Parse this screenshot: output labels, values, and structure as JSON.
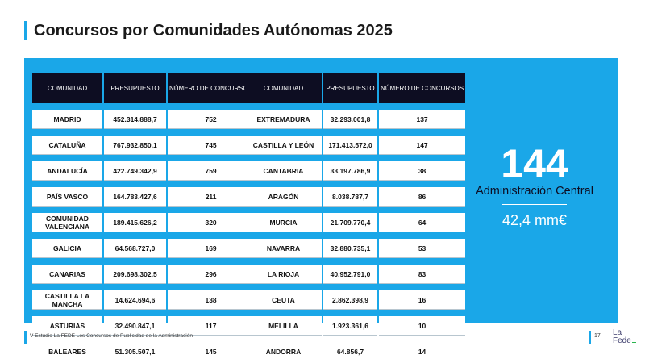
{
  "header": {
    "title": "Concursos por Comunidades Autónomas 2025"
  },
  "columns": [
    "COMUNIDAD",
    "PRESUPUESTO",
    "NÚMERO DE CONCURSOS"
  ],
  "left_table": [
    {
      "comunidad": "MADRID",
      "presupuesto": "452.314.888,7",
      "concursos": "752"
    },
    {
      "comunidad": "CATALUÑA",
      "presupuesto": "767.932.850,1",
      "concursos": "745"
    },
    {
      "comunidad": "ANDALUCÍA",
      "presupuesto": "422.749.342,9",
      "concursos": "759"
    },
    {
      "comunidad": "PAÍS VASCO",
      "presupuesto": "164.783.427,6",
      "concursos": "211"
    },
    {
      "comunidad": "COMUNIDAD VALENCIANA",
      "presupuesto": "189.415.626,2",
      "concursos": "320"
    },
    {
      "comunidad": "GALICIA",
      "presupuesto": "64.568.727,0",
      "concursos": "169"
    },
    {
      "comunidad": "CANARIAS",
      "presupuesto": "209.698.302,5",
      "concursos": "296"
    },
    {
      "comunidad": "CASTILLA LA MANCHA",
      "presupuesto": "14.624.694,6",
      "concursos": "138"
    },
    {
      "comunidad": "ASTURIAS",
      "presupuesto": "32.490.847,1",
      "concursos": "117"
    },
    {
      "comunidad": "BALEARES",
      "presupuesto": "51.305.507,1",
      "concursos": "145"
    }
  ],
  "right_table": [
    {
      "comunidad": "EXTREMADURA",
      "presupuesto": "32.293.001,8",
      "concursos": "137"
    },
    {
      "comunidad": "CASTILLA Y LEÓN",
      "presupuesto": "171.413.572,0",
      "concursos": "147"
    },
    {
      "comunidad": "CANTABRIA",
      "presupuesto": "33.197.786,9",
      "concursos": "38"
    },
    {
      "comunidad": "ARAGÓN",
      "presupuesto": "8.038.787,7",
      "concursos": "86"
    },
    {
      "comunidad": "MURCIA",
      "presupuesto": "21.709.770,4",
      "concursos": "64"
    },
    {
      "comunidad": "NAVARRA",
      "presupuesto": "32.880.735,1",
      "concursos": "53"
    },
    {
      "comunidad": "LA RIOJA",
      "presupuesto": "40.952.791,0",
      "concursos": "83"
    },
    {
      "comunidad": "CEUTA",
      "presupuesto": "2.862.398,9",
      "concursos": "16"
    },
    {
      "comunidad": "MELILLA",
      "presupuesto": "1.923.361,6",
      "concursos": "10"
    },
    {
      "comunidad": "ANDORRA",
      "presupuesto": "64.856,7",
      "concursos": "14"
    }
  ],
  "highlight": {
    "number": "144",
    "label": "Administración Central",
    "amount": "42,4 mm€"
  },
  "footer": {
    "text": "V Estudio La FEDE Los Concursos de Publicidad de la Administración",
    "page": "17"
  },
  "logo": {
    "line1": "La",
    "line2": "Fede"
  },
  "colors": {
    "accent": "#1aa7e8",
    "header_dark": "#0d0d22",
    "logo_green": "#2ab54f"
  }
}
